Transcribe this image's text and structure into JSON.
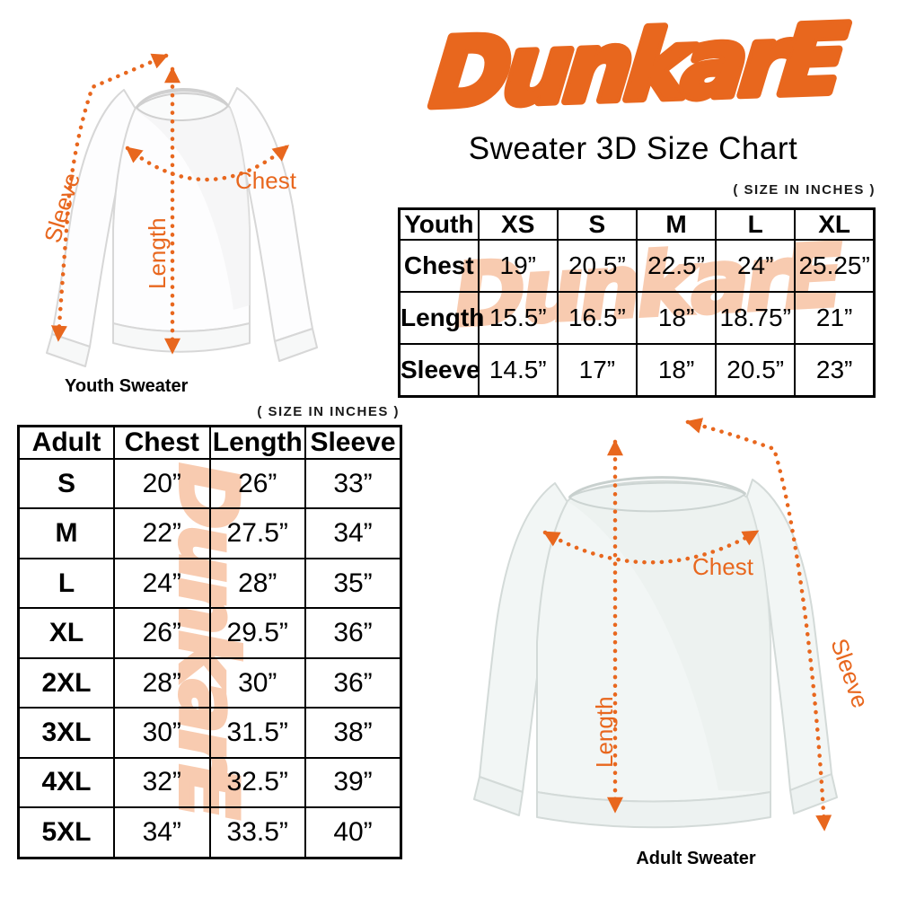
{
  "brand": {
    "logo_text": "DunkarE",
    "subtitle": "Sweater 3D Size Chart",
    "accent_color": "#E8671E",
    "watermark_color": "#F8CBB0"
  },
  "youth_diagram": {
    "caption": "Youth Sweater",
    "labels": {
      "sleeve": "Sleeve",
      "length": "Length",
      "chest": "Chest"
    }
  },
  "adult_diagram": {
    "caption": "Adult Sweater",
    "labels": {
      "sleeve": "Sleeve",
      "length": "Length",
      "chest": "Chest"
    }
  },
  "youth_table": {
    "units_note": "( SIZE IN INCHES )",
    "header": [
      "Youth",
      "XS",
      "S",
      "M",
      "L",
      "XL"
    ],
    "rows": [
      {
        "label": "Chest",
        "values": [
          "19”",
          "20.5”",
          "22.5”",
          "24”",
          "25.25”"
        ]
      },
      {
        "label": "Length",
        "values": [
          "15.5”",
          "16.5”",
          "18”",
          "18.75”",
          "21”"
        ]
      },
      {
        "label": "Sleeve",
        "values": [
          "14.5”",
          "17”",
          "18”",
          "20.5”",
          "23”"
        ]
      }
    ]
  },
  "adult_table": {
    "units_note": "( SIZE IN INCHES )",
    "header": [
      "Adult",
      "Chest",
      "Length",
      "Sleeve"
    ],
    "rows": [
      {
        "label": "S",
        "values": [
          "20”",
          "26”",
          "33”"
        ]
      },
      {
        "label": "M",
        "values": [
          "22”",
          "27.5”",
          "34”"
        ]
      },
      {
        "label": "L",
        "values": [
          "24”",
          "28”",
          "35”"
        ]
      },
      {
        "label": "XL",
        "values": [
          "26”",
          "29.5”",
          "36”"
        ]
      },
      {
        "label": "2XL",
        "values": [
          "28”",
          "30”",
          "36”"
        ]
      },
      {
        "label": "3XL",
        "values": [
          "30”",
          "31.5”",
          "38”"
        ]
      },
      {
        "label": "4XL",
        "values": [
          "32”",
          "32.5”",
          "39”"
        ]
      },
      {
        "label": "5XL",
        "values": [
          "34”",
          "33.5”",
          "40”"
        ]
      }
    ]
  }
}
